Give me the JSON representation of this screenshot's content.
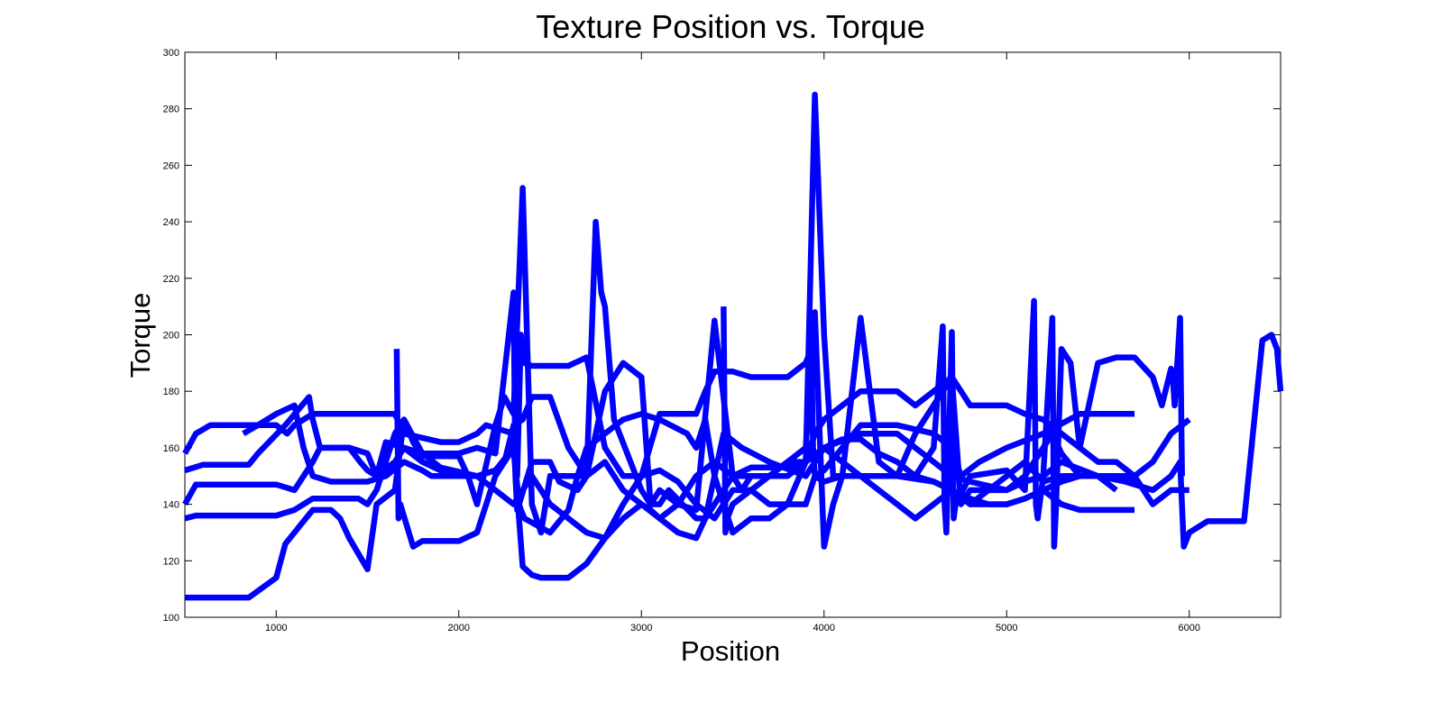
{
  "chart_data": {
    "type": "line",
    "title": "Texture Position vs. Torque",
    "xlabel": "Position",
    "ylabel": "Torque",
    "xlim": [
      500,
      6500
    ],
    "ylim": [
      100,
      300
    ],
    "xticks": [
      1000,
      2000,
      3000,
      4000,
      5000,
      6000
    ],
    "yticks": [
      100,
      120,
      140,
      160,
      180,
      200,
      220,
      240,
      260,
      280,
      300
    ],
    "grid": false,
    "legend": "none",
    "color": "#0000ff",
    "series": [
      {
        "x": [
          500,
          560,
          640,
          1000,
          1060,
          1100,
          1200,
          1220,
          1650,
          1700,
          1900,
          2000,
          2100,
          2150,
          2300,
          2320,
          2340,
          2360,
          2400,
          2600,
          2700,
          2800,
          2900,
          3000,
          3100,
          3300,
          3350,
          3400,
          3500,
          3600,
          3800,
          3900,
          3930,
          3940,
          3950,
          4000,
          4100,
          4200,
          4400,
          4600,
          4700,
          4750,
          4850,
          5000,
          5200,
          5400,
          5700
        ],
        "y": [
          158,
          165,
          168,
          168,
          165,
          168,
          172,
          172,
          172,
          165,
          162,
          162,
          165,
          168,
          165,
          150,
          200,
          190,
          189,
          189,
          192,
          160,
          150,
          150,
          172,
          172,
          180,
          187,
          187,
          185,
          185,
          190,
          195,
          160,
          150,
          152,
          160,
          168,
          168,
          165,
          160,
          150,
          155,
          160,
          165,
          172,
          172
        ]
      },
      {
        "x": [
          500,
          600,
          850,
          900,
          1050,
          1180,
          1200,
          1240,
          1400,
          1460,
          1500,
          1550,
          1650,
          1700,
          1800,
          1900,
          2000,
          2100,
          2200,
          2300,
          2330,
          2340,
          2360,
          2500,
          2600,
          2650,
          2700,
          2800,
          2900,
          3000,
          3100,
          3250,
          3300,
          3350,
          3400,
          3450,
          3550,
          3700,
          3900,
          4000,
          4200,
          4400,
          4500,
          4600,
          4700,
          4800,
          5000,
          5100,
          5200,
          5300,
          5500,
          5650,
          5800,
          5900,
          5950,
          5970,
          6000,
          6100,
          6300,
          6400,
          6450,
          6480,
          6500
        ],
        "y": [
          152,
          154,
          154,
          158,
          168,
          178,
          170,
          160,
          160,
          155,
          152,
          150,
          155,
          160,
          155,
          152,
          150,
          150,
          152,
          160,
          140,
          138,
          135,
          130,
          138,
          150,
          160,
          165,
          170,
          172,
          170,
          165,
          160,
          170,
          150,
          165,
          160,
          155,
          150,
          160,
          165,
          165,
          160,
          155,
          150,
          148,
          145,
          148,
          150,
          155,
          150,
          148,
          145,
          150,
          155,
          125,
          130,
          134,
          134,
          198,
          200,
          195,
          180
        ]
      },
      {
        "x": [
          500,
          560,
          700,
          900,
          1000,
          1100,
          1150,
          1200,
          1240,
          1300,
          1400,
          1500,
          1550,
          1600,
          1700,
          1800,
          2000,
          2100,
          2200,
          2300,
          2310,
          2320,
          2330,
          2400,
          2500,
          2550,
          2650,
          2700,
          2800,
          2900,
          3000,
          3050,
          3100,
          3200,
          3300,
          3400,
          3500,
          3550,
          3600,
          3800,
          3900,
          4000,
          4200,
          4400,
          4500,
          4650,
          4700,
          4750,
          4800,
          5000,
          5100,
          5200,
          5250,
          5300,
          5400,
          5500,
          5700,
          5800,
          5900,
          6000
        ],
        "y": [
          140,
          147,
          147,
          147,
          147,
          145,
          150,
          155,
          160,
          160,
          160,
          158,
          150,
          162,
          160,
          158,
          158,
          160,
          158,
          215,
          150,
          138,
          140,
          155,
          155,
          148,
          145,
          150,
          180,
          190,
          185,
          140,
          145,
          140,
          138,
          205,
          150,
          145,
          150,
          150,
          155,
          160,
          150,
          150,
          165,
          180,
          185,
          140,
          145,
          145,
          150,
          160,
          165,
          158,
          150,
          150,
          150,
          140,
          145,
          145
        ]
      },
      {
        "x": [
          500,
          560,
          600,
          800,
          1000,
          1100,
          1200,
          1300,
          1450,
          1500,
          1550,
          1650,
          1700,
          1750,
          1800,
          1900,
          2000,
          2050,
          2100,
          2200,
          2250,
          2300,
          2350,
          2400,
          2450,
          2500,
          2700,
          2750,
          2780,
          2800,
          2850,
          3000,
          3050,
          3100,
          3150,
          3300,
          3350,
          3400,
          3500,
          3600,
          3700,
          3800,
          3900,
          3950,
          4000,
          4050,
          4200,
          4300,
          4400,
          4500,
          4600,
          4700,
          4800,
          4900,
          5000,
          5100,
          5200,
          5300,
          5400,
          5500,
          5600
        ],
        "y": [
          135,
          136,
          136,
          136,
          136,
          138,
          142,
          142,
          142,
          140,
          145,
          165,
          170,
          162,
          157,
          157,
          157,
          150,
          140,
          168,
          178,
          172,
          252,
          140,
          130,
          150,
          150,
          240,
          215,
          210,
          170,
          145,
          140,
          140,
          145,
          135,
          135,
          150,
          130,
          135,
          135,
          140,
          155,
          285,
          200,
          150,
          150,
          145,
          140,
          135,
          140,
          145,
          140,
          145,
          150,
          155,
          148,
          150,
          150,
          150,
          145
        ]
      },
      {
        "x": [
          500,
          540,
          580,
          600,
          700,
          850,
          1000,
          1050,
          1100,
          1150,
          1200,
          1300,
          1350,
          1400,
          1500,
          1550,
          1650,
          1700,
          1800,
          1900,
          2100,
          2200,
          2300,
          2350,
          2400,
          2450,
          2500,
          2600,
          2700,
          2800,
          2900,
          3000,
          3100,
          3200,
          3300,
          3400,
          3450,
          3500,
          3600,
          3700,
          3800,
          3900,
          3950,
          4000,
          4100,
          4200,
          4400,
          4600,
          4700,
          4800,
          4900,
          5000,
          5100,
          5200,
          5300,
          5400,
          5500,
          5600,
          5700
        ],
        "y": [
          107,
          107,
          107,
          107,
          107,
          107,
          114,
          126,
          130,
          134,
          138,
          138,
          135,
          128,
          117,
          140,
          145,
          170,
          158,
          153,
          150,
          145,
          140,
          145,
          150,
          145,
          140,
          135,
          130,
          128,
          140,
          150,
          152,
          148,
          140,
          135,
          140,
          145,
          145,
          140,
          140,
          140,
          150,
          148,
          150,
          150,
          150,
          148,
          145,
          140,
          140,
          140,
          142,
          145,
          140,
          138,
          138,
          138,
          138
        ]
      },
      {
        "x": [
          1660,
          1670,
          1680,
          1750,
          1800,
          1900,
          2000,
          2100,
          2200,
          2300,
          2350,
          2400,
          2450,
          2500,
          2600,
          2700,
          2800,
          2900,
          3000,
          3050,
          3100,
          3200,
          3300,
          3350,
          3400,
          3500,
          3600,
          3700,
          3800,
          3900,
          3950,
          4000,
          4100,
          4200,
          4300,
          4400,
          4500,
          4600,
          4700,
          4800,
          4900,
          5000,
          5100,
          5200,
          5300,
          5400,
          5500,
          5600,
          5700,
          5800,
          5900,
          6000
        ],
        "y": [
          195,
          135,
          140,
          125,
          127,
          127,
          127,
          130,
          150,
          160,
          118,
          115,
          114,
          114,
          114,
          119,
          128,
          135,
          140,
          138,
          135,
          130,
          128,
          135,
          140,
          150,
          153,
          153,
          153,
          155,
          165,
          170,
          175,
          180,
          180,
          180,
          175,
          180,
          185,
          175,
          175,
          175,
          172,
          170,
          165,
          160,
          155,
          155,
          150,
          155,
          165,
          170
        ]
      },
      {
        "x": [
          820,
          900,
          1000,
          1100,
          1150,
          1200,
          1300,
          1400,
          1500,
          1600,
          1700,
          1800,
          1850,
          1900,
          2000,
          2100,
          2200,
          2250,
          2300,
          2350,
          2400,
          2500,
          2600,
          2700,
          2800,
          2900,
          3000,
          3100,
          3200,
          3300,
          3400,
          3500,
          3600,
          3700,
          3800,
          3900,
          4000,
          4100,
          4200,
          4300,
          4400,
          4500,
          4600,
          4700,
          4800,
          4900,
          5000,
          5100,
          5200,
          5300,
          5400,
          5500,
          5600,
          5700
        ],
        "y": [
          165,
          168,
          172,
          175,
          160,
          150,
          148,
          148,
          148,
          150,
          155,
          152,
          150,
          150,
          150,
          150,
          152,
          155,
          168,
          170,
          178,
          178,
          160,
          150,
          155,
          145,
          140,
          135,
          140,
          150,
          155,
          150,
          150,
          150,
          155,
          155,
          160,
          163,
          163,
          158,
          155,
          150,
          148,
          145,
          142,
          140,
          140,
          142,
          145,
          148,
          150,
          150,
          150,
          148
        ]
      },
      {
        "x": [
          3450,
          3460,
          3470,
          3500,
          3600,
          3700,
          3800,
          3900,
          3950,
          4000,
          4050,
          4100,
          4200,
          4300,
          4400,
          4500,
          4600,
          4650,
          4660,
          4670,
          4700,
          4710,
          4720,
          4800,
          5000,
          5100,
          5150,
          5160,
          5170,
          5200,
          5250,
          5260,
          5270,
          5300,
          5350,
          5400,
          5450,
          5500,
          5600,
          5700,
          5800,
          5850,
          5900,
          5910,
          5920,
          5950,
          5960
        ],
        "y": [
          210,
          130,
          135,
          140,
          145,
          150,
          155,
          160,
          208,
          125,
          140,
          150,
          206,
          155,
          150,
          150,
          160,
          203,
          140,
          130,
          201,
          135,
          140,
          150,
          152,
          145,
          212,
          140,
          135,
          150,
          206,
          125,
          138,
          195,
          190,
          160,
          175,
          190,
          192,
          192,
          185,
          175,
          188,
          185,
          175,
          206,
          150
        ]
      }
    ]
  }
}
